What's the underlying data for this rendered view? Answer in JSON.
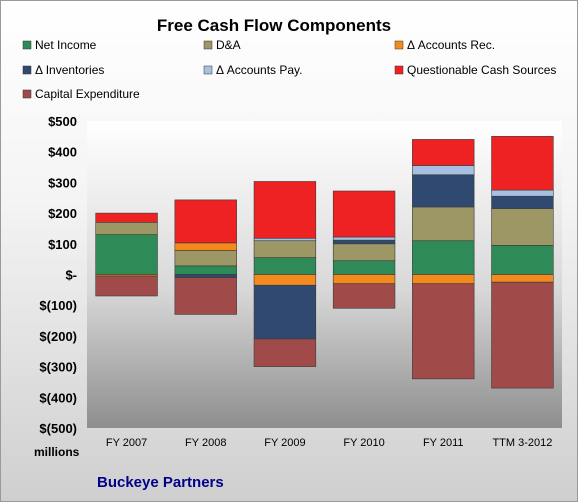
{
  "chart_data": {
    "type": "bar",
    "stacked": true,
    "title": "Free Cash Flow Components",
    "categories": [
      "FY 2007",
      "FY 2008",
      "FY 2009",
      "FY 2010",
      "FY 2011",
      "TTM 3-2012"
    ],
    "ylim": [
      -500,
      500
    ],
    "yticks": [
      500,
      400,
      300,
      200,
      100,
      0,
      -100,
      -200,
      -300,
      -400,
      -500
    ],
    "ytick_labels": [
      "$500",
      "$400",
      "$300",
      "$200",
      "$100",
      "$-",
      "$(100)",
      "$(200)",
      "$(300)",
      "$(400)",
      "$(500)"
    ],
    "units_label": "millions",
    "company_label": "Buckeye Partners",
    "legend_position": "top",
    "grid": false,
    "series": [
      {
        "name": "Net Income",
        "color": "#2e8b57",
        "values": [
          130,
          28,
          55,
          45,
          110,
          95
        ]
      },
      {
        "name": "D&A",
        "color": "#9c9764",
        "values": [
          40,
          50,
          55,
          55,
          110,
          120
        ]
      },
      {
        "name": "Δ Accounts Rec.",
        "color": "#f28a1e",
        "values": [
          -5,
          25,
          -35,
          -30,
          -30,
          -25
        ]
      },
      {
        "name": "Δ Inventories",
        "color": "#2f4970",
        "values": [
          0,
          -10,
          -175,
          12,
          105,
          40
        ]
      },
      {
        "name": "Δ Accounts Pay.",
        "color": "#a7bfe0",
        "values": [
          0,
          0,
          8,
          10,
          30,
          20
        ]
      },
      {
        "name": "Questionable Cash Sources",
        "color": "#ee2222",
        "values": [
          30,
          140,
          185,
          150,
          85,
          175
        ]
      },
      {
        "name": "Capital Expenditure",
        "color": "#a04a4a",
        "values": [
          -65,
          -120,
          -90,
          -80,
          -310,
          -345
        ]
      }
    ]
  }
}
